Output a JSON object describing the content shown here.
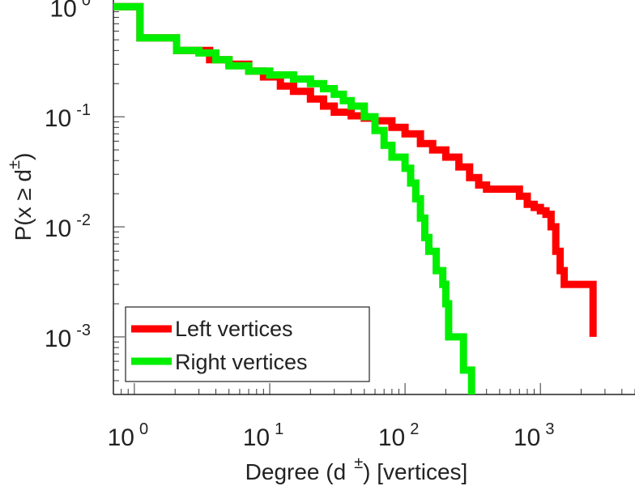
{
  "chart_data": {
    "type": "line",
    "scale": "log-log",
    "title": "",
    "xlabel_main": "Degree (d",
    "xlabel_sup": "±",
    "xlabel_tail": ") [vertices]",
    "ylabel_main": "P(x ≥ d",
    "ylabel_sup": "±",
    "ylabel_tail": ")",
    "xlim": [
      0.7,
      5000
    ],
    "ylim": [
      0.0003,
      1.15
    ],
    "x_ticks": [
      {
        "value": 1,
        "base": "10",
        "exp": "0"
      },
      {
        "value": 10,
        "base": "10",
        "exp": "1"
      },
      {
        "value": 100,
        "base": "10",
        "exp": "2"
      },
      {
        "value": 1000,
        "base": "10",
        "exp": "3"
      }
    ],
    "y_ticks": [
      {
        "value": 1,
        "base": "10",
        "exp": "0"
      },
      {
        "value": 0.1,
        "base": "10",
        "exp": "-1"
      },
      {
        "value": 0.01,
        "base": "10",
        "exp": "-2"
      },
      {
        "value": 0.001,
        "base": "10",
        "exp": "-3"
      }
    ],
    "legend_position": "bottom-left",
    "series": [
      {
        "name": "Left vertices",
        "color": "#ff0000",
        "points": [
          [
            0.7,
            1.0
          ],
          [
            1,
            1.0
          ],
          [
            1.1,
            0.52
          ],
          [
            2,
            0.52
          ],
          [
            2.05,
            0.4
          ],
          [
            3.5,
            0.4
          ],
          [
            3.6,
            0.33
          ],
          [
            5,
            0.3
          ],
          [
            7,
            0.26
          ],
          [
            9,
            0.23
          ],
          [
            12,
            0.19
          ],
          [
            15,
            0.17
          ],
          [
            20,
            0.145
          ],
          [
            25,
            0.125
          ],
          [
            30,
            0.11
          ],
          [
            40,
            0.102
          ],
          [
            50,
            0.097
          ],
          [
            60,
            0.092
          ],
          [
            80,
            0.08
          ],
          [
            100,
            0.07
          ],
          [
            130,
            0.057
          ],
          [
            160,
            0.05
          ],
          [
            200,
            0.043
          ],
          [
            250,
            0.035
          ],
          [
            300,
            0.028
          ],
          [
            350,
            0.024
          ],
          [
            400,
            0.022
          ],
          [
            600,
            0.022
          ],
          [
            700,
            0.019
          ],
          [
            800,
            0.016
          ],
          [
            900,
            0.015
          ],
          [
            1000,
            0.014
          ],
          [
            1100,
            0.013
          ],
          [
            1200,
            0.01
          ],
          [
            1300,
            0.006
          ],
          [
            1400,
            0.004
          ],
          [
            1500,
            0.003
          ],
          [
            2000,
            0.003
          ],
          [
            2400,
            0.003
          ],
          [
            2450,
            0.001
          ]
        ]
      },
      {
        "name": "Right vertices",
        "color": "#00ee00",
        "points": [
          [
            0.7,
            1.0
          ],
          [
            1,
            1.0
          ],
          [
            1.1,
            0.52
          ],
          [
            2,
            0.52
          ],
          [
            2.05,
            0.4
          ],
          [
            3,
            0.38
          ],
          [
            4,
            0.33
          ],
          [
            5,
            0.29
          ],
          [
            7,
            0.26
          ],
          [
            10,
            0.24
          ],
          [
            15,
            0.22
          ],
          [
            20,
            0.2
          ],
          [
            25,
            0.18
          ],
          [
            30,
            0.16
          ],
          [
            35,
            0.14
          ],
          [
            40,
            0.125
          ],
          [
            50,
            0.1
          ],
          [
            60,
            0.075
          ],
          [
            70,
            0.055
          ],
          [
            80,
            0.043
          ],
          [
            100,
            0.034
          ],
          [
            110,
            0.025
          ],
          [
            120,
            0.018
          ],
          [
            130,
            0.012
          ],
          [
            140,
            0.008
          ],
          [
            150,
            0.006
          ],
          [
            170,
            0.004
          ],
          [
            190,
            0.003
          ],
          [
            200,
            0.002
          ],
          [
            210,
            0.001
          ],
          [
            260,
            0.001
          ],
          [
            270,
            0.0005
          ],
          [
            300,
            0.0005
          ],
          [
            310,
            0.0003
          ]
        ]
      }
    ]
  }
}
